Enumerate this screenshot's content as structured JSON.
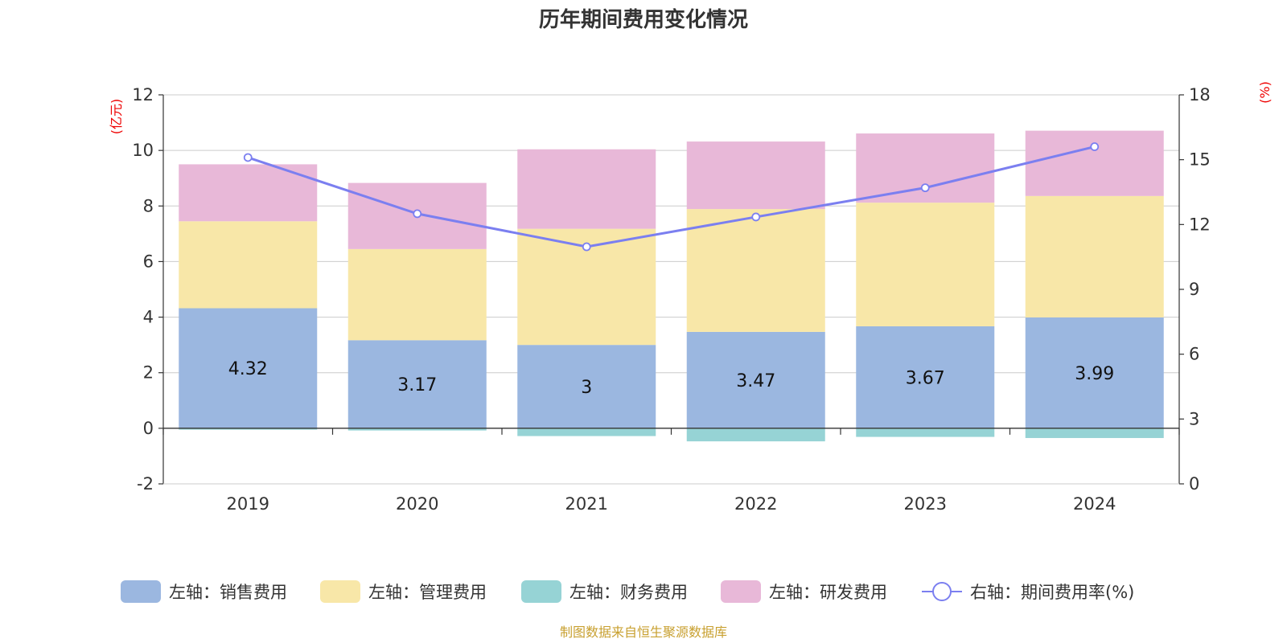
{
  "chart_data": {
    "type": "bar",
    "title": "历年期间费用变化情况",
    "categories": [
      "2019",
      "2020",
      "2021",
      "2022",
      "2023",
      "2024"
    ],
    "left_axis": {
      "unit": "(亿元)",
      "ylim": [
        -2,
        12
      ],
      "ticks": [
        -2,
        0,
        2,
        4,
        6,
        8,
        10,
        12
      ]
    },
    "right_axis": {
      "unit": "(%)",
      "ylim": [
        0,
        18
      ],
      "ticks": [
        0,
        3,
        6,
        9,
        12,
        15,
        18
      ]
    },
    "series": [
      {
        "name": "左轴：销售费用",
        "type": "bar",
        "axis": "left",
        "color": "#9bb7e0",
        "values": [
          4.32,
          3.17,
          3,
          3.47,
          3.67,
          3.99
        ],
        "labels": [
          "4.32",
          "3.17",
          "3",
          "3.47",
          "3.67",
          "3.99"
        ]
      },
      {
        "name": "左轴：管理费用",
        "type": "bar",
        "axis": "left",
        "color": "#f8e7a8",
        "values": [
          3.13,
          3.28,
          4.18,
          4.42,
          4.45,
          4.37
        ]
      },
      {
        "name": "左轴：财务费用",
        "type": "bar",
        "axis": "left",
        "color": "#96d3d5",
        "values": [
          -0.05,
          -0.08,
          -0.28,
          -0.47,
          -0.31,
          -0.35
        ]
      },
      {
        "name": "左轴：研发费用",
        "type": "bar",
        "axis": "left",
        "color": "#e8b8d8",
        "values": [
          2.05,
          2.38,
          2.86,
          2.43,
          2.49,
          2.35
        ]
      },
      {
        "name": "右轴：期间费用率(%)",
        "type": "line",
        "axis": "right",
        "color": "#7b7ff0",
        "values": [
          15.1,
          12.5,
          10.97,
          12.35,
          13.7,
          15.6
        ]
      }
    ],
    "grid": true,
    "legend": "bottom-center"
  },
  "source": "制图数据来自恒生聚源数据库"
}
